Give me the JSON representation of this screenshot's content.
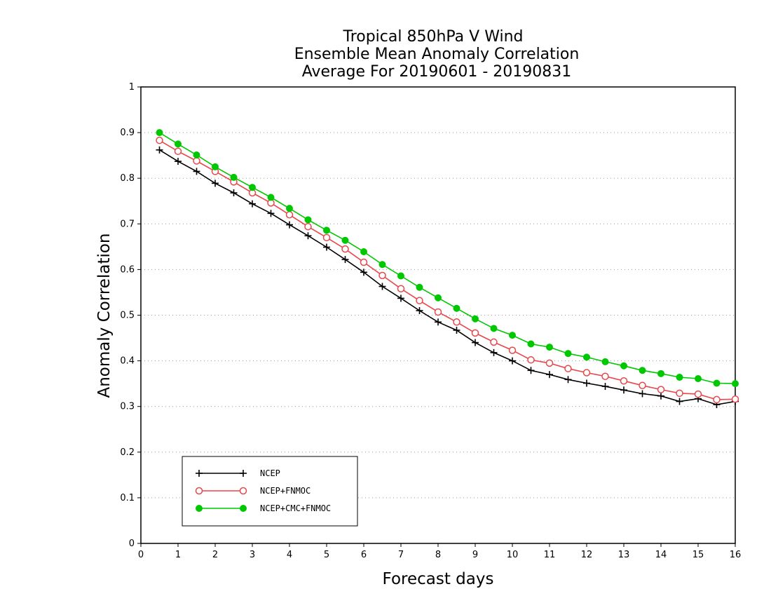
{
  "chart_data": {
    "type": "line",
    "title_lines": [
      "Tropical 850hPa V Wind",
      "Ensemble Mean Anomaly Correlation",
      "Average For 20190601 - 20190831"
    ],
    "xlabel": "Forecast days",
    "ylabel": "Anomaly Correlation",
    "xlim": [
      0,
      16
    ],
    "ylim": [
      0,
      1
    ],
    "xticks": [
      0,
      1,
      2,
      3,
      4,
      5,
      6,
      7,
      8,
      9,
      10,
      11,
      12,
      13,
      14,
      15,
      16
    ],
    "yticks": [
      0,
      0.1,
      0.2,
      0.3,
      0.4,
      0.5,
      0.6,
      0.7,
      0.8,
      0.9,
      1
    ],
    "ytick_labels": [
      "0",
      "0.1",
      "0.2",
      "0.3",
      "0.4",
      "0.5",
      "0.6",
      "0.7",
      "0.8",
      "0.9",
      "1"
    ],
    "grid": "horizontal dotted",
    "legend_position": "bottom-left",
    "x": [
      0.5,
      1,
      1.5,
      2,
      2.5,
      3,
      3.5,
      4,
      4.5,
      5,
      5.5,
      6,
      6.5,
      7,
      7.5,
      8,
      8.5,
      9,
      9.5,
      10,
      10.5,
      11,
      11.5,
      12,
      12.5,
      13,
      13.5,
      14,
      14.5,
      15,
      15.5,
      16
    ],
    "series": [
      {
        "name": "NCEP",
        "color": "#000000",
        "marker": "plus",
        "values": [
          0.862,
          0.837,
          0.815,
          0.789,
          0.768,
          0.744,
          0.723,
          0.698,
          0.674,
          0.649,
          0.622,
          0.594,
          0.563,
          0.537,
          0.51,
          0.485,
          0.467,
          0.44,
          0.418,
          0.4,
          0.379,
          0.37,
          0.359,
          0.351,
          0.344,
          0.336,
          0.328,
          0.323,
          0.311,
          0.317,
          0.304,
          0.311
        ]
      },
      {
        "name": "NCEP+FNMOC",
        "color": "#e8474b",
        "marker": "open-circle",
        "values": [
          0.883,
          0.859,
          0.838,
          0.815,
          0.792,
          0.768,
          0.746,
          0.72,
          0.694,
          0.67,
          0.645,
          0.616,
          0.587,
          0.558,
          0.532,
          0.507,
          0.485,
          0.461,
          0.441,
          0.423,
          0.402,
          0.395,
          0.383,
          0.374,
          0.366,
          0.356,
          0.346,
          0.337,
          0.329,
          0.327,
          0.315,
          0.316
        ]
      },
      {
        "name": "NCEP+CMC+FNMOC",
        "color": "#00c800",
        "marker": "filled-circle",
        "values": [
          0.9,
          0.875,
          0.851,
          0.825,
          0.802,
          0.78,
          0.758,
          0.734,
          0.709,
          0.686,
          0.664,
          0.639,
          0.611,
          0.586,
          0.561,
          0.538,
          0.515,
          0.492,
          0.471,
          0.456,
          0.437,
          0.43,
          0.416,
          0.408,
          0.398,
          0.389,
          0.379,
          0.372,
          0.364,
          0.361,
          0.351,
          0.35
        ]
      }
    ]
  }
}
